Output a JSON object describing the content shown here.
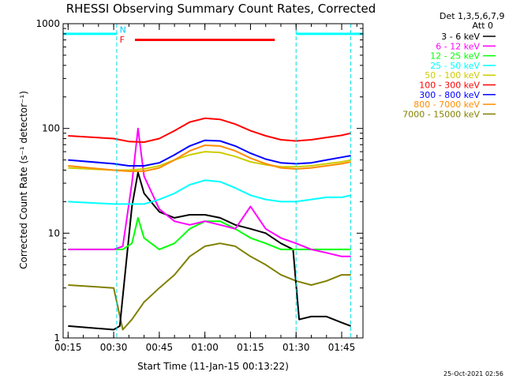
{
  "chart_data": {
    "type": "line",
    "title": "RHESSI Observing Summary Count Rates, Corrected",
    "xlabel": "Start Time (11-Jan-15 00:13:22)",
    "ylabel": "Corrected Count Rate (s⁻¹ detector⁻¹)",
    "x_scale": "time",
    "y_scale": "log",
    "xlim": [
      "00:13:22",
      "01:52:00"
    ],
    "ylim": [
      1,
      1000
    ],
    "x_ticks": [
      "00:15",
      "00:30",
      "00:45",
      "01:00",
      "01:15",
      "01:30",
      "01:45"
    ],
    "y_ticks": [
      "1",
      "10",
      "100",
      "1000"
    ],
    "legend_header": [
      "Det 1,3,5,6,7,9,",
      "Att 0"
    ],
    "legend_position": "right",
    "series": [
      {
        "name": "3 - 6 keV",
        "color": "#000000",
        "x": [
          "00:15",
          "00:30",
          "00:32",
          "00:36",
          "00:38",
          "00:40",
          "00:45",
          "00:50",
          "00:55",
          "01:00",
          "01:05",
          "01:10",
          "01:15",
          "01:20",
          "01:25",
          "01:29",
          "01:31",
          "01:35",
          "01:40",
          "01:45",
          "01:48"
        ],
        "y": [
          1.3,
          1.2,
          1.3,
          18,
          38,
          24,
          16,
          14,
          15,
          15,
          14,
          12,
          11,
          10,
          8,
          7,
          1.5,
          1.6,
          1.6,
          1.4,
          1.3
        ]
      },
      {
        "name": "6 - 12 keV",
        "color": "#ff00ff",
        "x": [
          "00:15",
          "00:30",
          "00:33",
          "00:36",
          "00:38",
          "00:40",
          "00:45",
          "00:50",
          "00:55",
          "01:00",
          "01:05",
          "01:10",
          "01:15",
          "01:20",
          "01:25",
          "01:30",
          "01:35",
          "01:40",
          "01:45",
          "01:48"
        ],
        "y": [
          7,
          7,
          7.5,
          30,
          100,
          35,
          17,
          13,
          12,
          13,
          12,
          11,
          18,
          11,
          9,
          8,
          7,
          6.5,
          6,
          6
        ]
      },
      {
        "name": "12 - 25 keV",
        "color": "#00ff00",
        "x": [
          "00:15",
          "00:30",
          "00:33",
          "00:36",
          "00:38",
          "00:40",
          "00:45",
          "00:50",
          "00:55",
          "01:00",
          "01:05",
          "01:10",
          "01:15",
          "01:20",
          "01:25",
          "01:30",
          "01:35",
          "01:40",
          "01:45",
          "01:48"
        ],
        "y": [
          7,
          7,
          7,
          8,
          14,
          9,
          7,
          8,
          11,
          13,
          13,
          11,
          9,
          8,
          7,
          7,
          7,
          7,
          7,
          7
        ]
      },
      {
        "name": "25 - 50 keV",
        "color": "#00ffff",
        "x": [
          "00:15",
          "00:30",
          "00:35",
          "00:40",
          "00:45",
          "00:50",
          "00:55",
          "01:00",
          "01:05",
          "01:10",
          "01:15",
          "01:20",
          "01:25",
          "01:30",
          "01:35",
          "01:40",
          "01:45",
          "01:48"
        ],
        "y": [
          20,
          19,
          19,
          19,
          21,
          24,
          29,
          32,
          31,
          27,
          23,
          21,
          20,
          20,
          21,
          22,
          22,
          23
        ]
      },
      {
        "name": "50 - 100 keV",
        "color": "#cccc00",
        "x": [
          "00:15",
          "00:30",
          "00:35",
          "00:40",
          "00:45",
          "00:50",
          "00:55",
          "01:00",
          "01:05",
          "01:10",
          "01:15",
          "01:20",
          "01:25",
          "01:30",
          "01:35",
          "01:40",
          "01:45",
          "01:48"
        ],
        "y": [
          42,
          40,
          40,
          41,
          44,
          50,
          56,
          60,
          59,
          54,
          48,
          45,
          43,
          43,
          44,
          46,
          48,
          50
        ]
      },
      {
        "name": "100 - 300 keV",
        "color": "#ff0000",
        "x": [
          "00:15",
          "00:30",
          "00:35",
          "00:40",
          "00:45",
          "00:50",
          "00:55",
          "01:00",
          "01:05",
          "01:10",
          "01:15",
          "01:20",
          "01:25",
          "01:30",
          "01:35",
          "01:40",
          "01:45",
          "01:48"
        ],
        "y": [
          85,
          80,
          75,
          74,
          80,
          95,
          115,
          125,
          122,
          110,
          95,
          85,
          78,
          76,
          78,
          82,
          86,
          90
        ]
      },
      {
        "name": "300 - 800 keV",
        "color": "#0000ff",
        "x": [
          "00:15",
          "00:30",
          "00:35",
          "00:40",
          "00:45",
          "00:50",
          "00:55",
          "01:00",
          "01:05",
          "01:10",
          "01:15",
          "01:20",
          "01:25",
          "01:30",
          "01:35",
          "01:40",
          "01:45",
          "01:48"
        ],
        "y": [
          50,
          46,
          44,
          44,
          47,
          56,
          68,
          77,
          76,
          68,
          58,
          51,
          47,
          46,
          47,
          50,
          53,
          55
        ]
      },
      {
        "name": "800 - 7000 keV",
        "color": "#ff8c00",
        "x": [
          "00:15",
          "00:30",
          "00:35",
          "00:40",
          "00:45",
          "00:50",
          "00:55",
          "01:00",
          "01:05",
          "01:10",
          "01:15",
          "01:20",
          "01:25",
          "01:30",
          "01:35",
          "01:40",
          "01:45",
          "01:48"
        ],
        "y": [
          44,
          40,
          39,
          39,
          42,
          50,
          61,
          69,
          68,
          61,
          52,
          46,
          42,
          41,
          42,
          44,
          46,
          48
        ]
      },
      {
        "name": "7000 - 15000 keV",
        "color": "#808000",
        "x": [
          "00:15",
          "00:30",
          "00:33",
          "00:36",
          "00:40",
          "00:45",
          "00:50",
          "00:55",
          "01:00",
          "01:05",
          "01:10",
          "01:15",
          "01:20",
          "01:25",
          "01:30",
          "01:35",
          "01:40",
          "01:45",
          "01:48"
        ],
        "y": [
          3.2,
          3,
          1.2,
          1.5,
          2.2,
          3,
          4,
          6,
          7.5,
          8,
          7.5,
          6,
          5,
          4,
          3.5,
          3.2,
          3.5,
          4,
          4
        ]
      }
    ],
    "annotations": [
      {
        "label": "N",
        "color": "#00cfff"
      },
      {
        "label": "F",
        "color": "#ff0000",
        "start": "00:37",
        "end": "01:23",
        "y": 700
      },
      {
        "label": "",
        "color": "#00ffff",
        "start": "00:13:22",
        "end": "00:31",
        "y": 800
      },
      {
        "label": "",
        "color": "#00ffff",
        "start": "01:30",
        "end": "01:52",
        "y": 800
      }
    ],
    "vertical_markers": [
      "00:31",
      "01:30",
      "01:48"
    ],
    "grid": false
  },
  "footer": {
    "timestamp": "25-Oct-2021 02:56"
  }
}
